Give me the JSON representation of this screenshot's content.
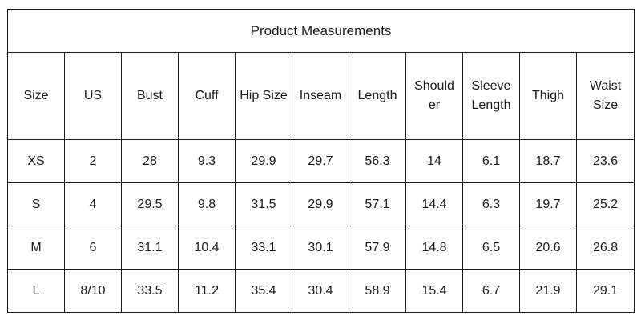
{
  "title": "Product Measurements",
  "columns": [
    "Size",
    "US",
    "Bust",
    "Cuff",
    "Hip Size",
    "Inseam",
    "Length",
    "Should\ner",
    "Sleeve\nLength",
    "Thigh",
    "Waist\nSize"
  ],
  "rows": [
    [
      "XS",
      "2",
      "28",
      "9.3",
      "29.9",
      "29.7",
      "56.3",
      "14",
      "6.1",
      "18.7",
      "23.6"
    ],
    [
      "S",
      "4",
      "29.5",
      "9.8",
      "31.5",
      "29.9",
      "57.1",
      "14.4",
      "6.3",
      "19.7",
      "25.2"
    ],
    [
      "M",
      "6",
      "31.1",
      "10.4",
      "33.1",
      "30.1",
      "57.9",
      "14.8",
      "6.5",
      "20.6",
      "26.8"
    ],
    [
      "L",
      "8/10",
      "33.5",
      "11.2",
      "35.4",
      "30.4",
      "58.9",
      "15.4",
      "6.7",
      "21.9",
      "29.1"
    ]
  ]
}
